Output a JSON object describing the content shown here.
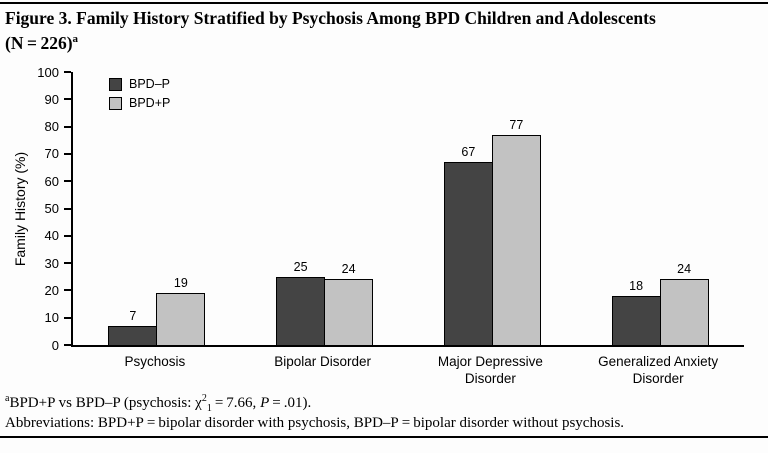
{
  "figure": {
    "title_line1": "Figure 3. Family History Stratified by Psychosis Among BPD Children and Adolescents",
    "title_line2": "(N = 226)",
    "title_sup": "a",
    "footnotes": {
      "line1_sup": "a",
      "line1_part1": "BPD+P vs BPD–P (psychosis: χ",
      "line1_sup2": "2",
      "line1_sub1": "1",
      "line1_part2": " = 7.66, ",
      "line1_italic": "P",
      "line1_part3": " = .01).",
      "line2": "Abbreviations: BPD+P = bipolar disorder with psychosis, BPD–P = bipolar disorder without psychosis."
    }
  },
  "chart_data": {
    "type": "bar",
    "title": "Figure 3. Family History Stratified by Psychosis Among BPD Children and Adolescents (N = 226)",
    "categories": [
      "Psychosis",
      "Bipolar Disorder",
      "Major Depressive Disorder",
      "Generalized Anxiety Disorder"
    ],
    "series": [
      {
        "name": "BPD–P",
        "values": [
          7,
          25,
          67,
          18
        ],
        "color": "#444444"
      },
      {
        "name": "BPD+P",
        "values": [
          19,
          24,
          77,
          24
        ],
        "color": "#c2c2c2"
      }
    ],
    "xlabel": "",
    "ylabel": "Family History (%)",
    "ylim": [
      0,
      100
    ],
    "ytick_step": 10,
    "grid": false,
    "legend_position": "top-left",
    "bar_border_color": "#000000",
    "axis_color": "#000000"
  }
}
